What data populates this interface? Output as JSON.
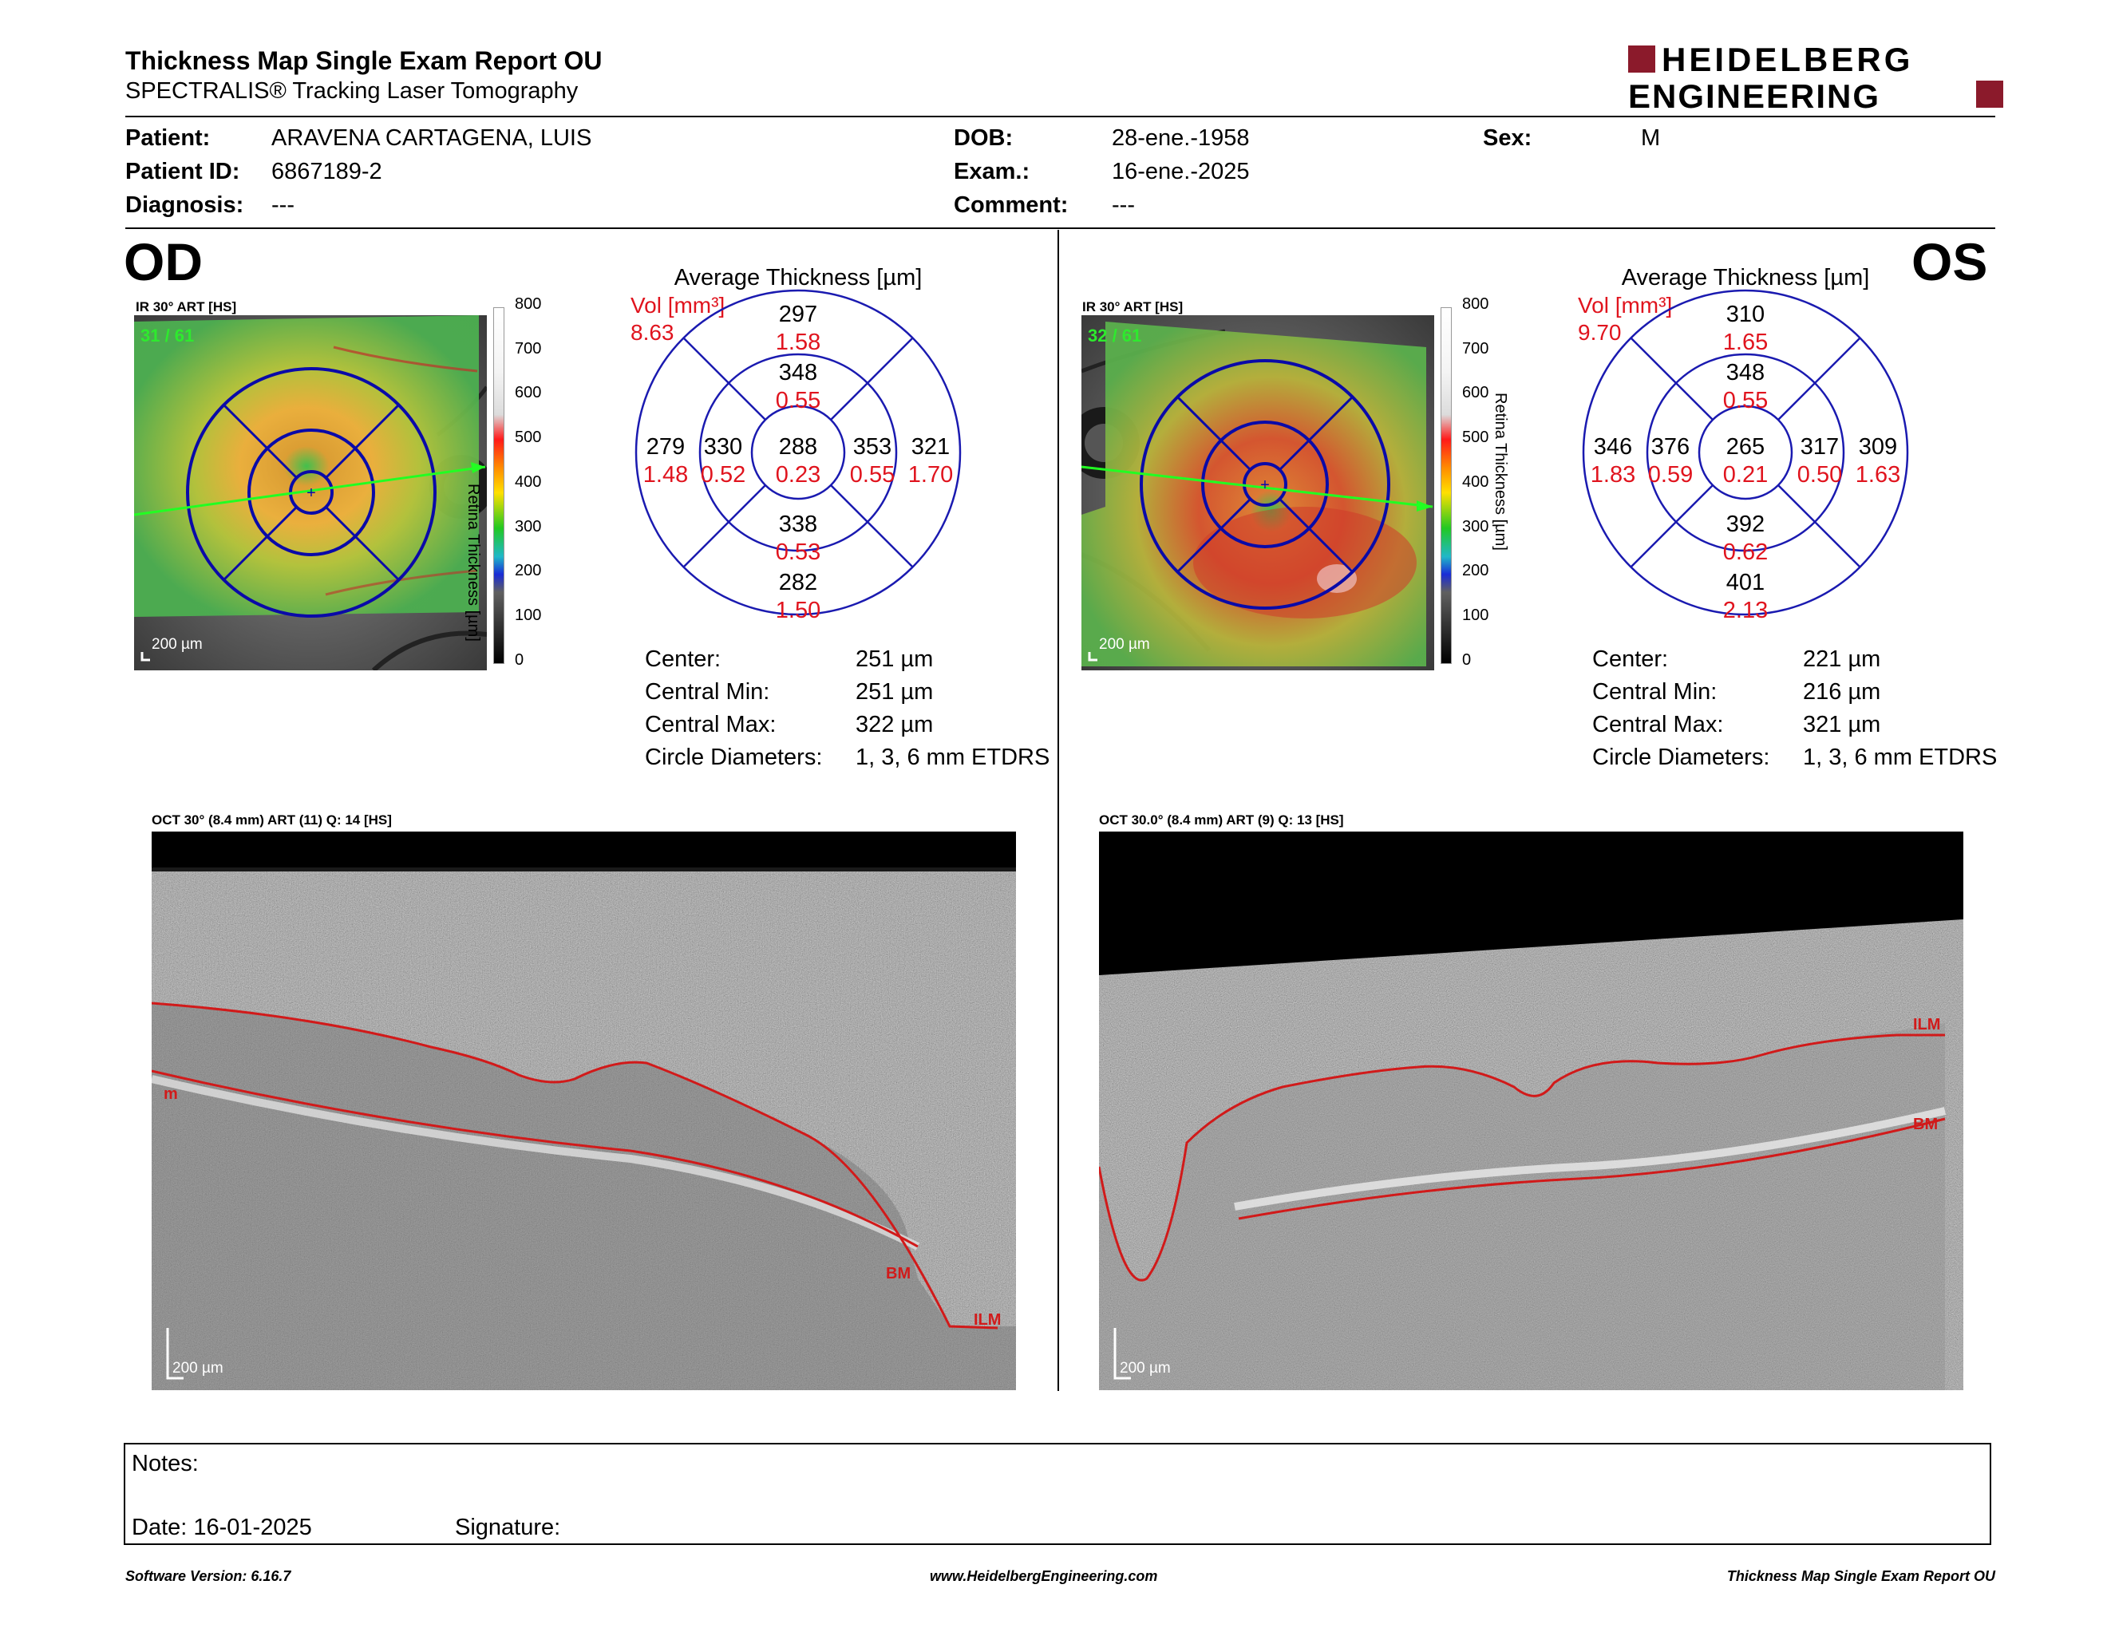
{
  "header": {
    "title": "Thickness Map Single Exam Report OU",
    "subtitle": "SPECTRALIS® Tracking Laser Tomography",
    "logo_line1": "HEIDELBERG",
    "logo_line2": "ENGINEERING",
    "brand_color": "#8b1a2b"
  },
  "patient": {
    "patient_label": "Patient:",
    "patient_value": "ARAVENA CARTAGENA, LUIS",
    "id_label": "Patient ID:",
    "id_value": "6867189-2",
    "diag_label": "Diagnosis:",
    "diag_value": "---",
    "dob_label": "DOB:",
    "dob_value": "28-ene.-1958",
    "exam_label": "Exam.:",
    "exam_value": "16-ene.-2025",
    "comment_label": "Comment:",
    "comment_value": "---",
    "sex_label": "Sex:",
    "sex_value": "M"
  },
  "od": {
    "eye_label": "OD",
    "ir_caption": "IR 30° ART [HS]",
    "frame": "31 / 61",
    "scale": "200 µm",
    "colorbar_ticks": [
      "800",
      "700",
      "600",
      "500",
      "400",
      "300",
      "200",
      "100",
      "0"
    ],
    "colorbar_label": "Retina Thickness [µm]",
    "avg_title": "Average Thickness [µm]",
    "vol_label": "Vol [mm³]",
    "vol_value": "8.63",
    "grid": {
      "outer_sup": "297",
      "outer_sup_vol": "1.58",
      "inner_sup": "348",
      "inner_sup_vol": "0.55",
      "outer_temp": "279",
      "outer_temp_vol": "1.48",
      "inner_temp": "330",
      "inner_temp_vol": "0.52",
      "center": "288",
      "center_vol": "0.23",
      "inner_nas": "353",
      "inner_nas_vol": "0.55",
      "outer_nas": "321",
      "outer_nas_vol": "1.70",
      "inner_inf": "338",
      "inner_inf_vol": "0.53",
      "outer_inf": "282",
      "outer_inf_vol": "1.50"
    },
    "stats": {
      "center_label": "Center:",
      "center_value": "251 µm",
      "min_label": "Central Min:",
      "min_value": "251 µm",
      "max_label": "Central Max:",
      "max_value": "322 µm",
      "circ_label": "Circle Diameters:",
      "circ_value": "1, 3, 6 mm ETDRS"
    },
    "oct_caption": "OCT 30° (8.4 mm) ART (11) Q: 14 [HS]",
    "oct_scale": "200 µm",
    "oct_labels": {
      "ilm": "ILM",
      "bm": "BM",
      "m": "m"
    }
  },
  "os": {
    "eye_label": "OS",
    "ir_caption": "IR 30° ART [HS]",
    "frame": "32 / 61",
    "scale": "200 µm",
    "colorbar_ticks": [
      "800",
      "700",
      "600",
      "500",
      "400",
      "300",
      "200",
      "100",
      "0"
    ],
    "colorbar_label": "Retina Thickness [µm]",
    "avg_title": "Average Thickness [µm]",
    "vol_label": "Vol [mm³]",
    "vol_value": "9.70",
    "grid": {
      "outer_sup": "310",
      "outer_sup_vol": "1.65",
      "inner_sup": "348",
      "inner_sup_vol": "0.55",
      "outer_temp": "346",
      "outer_temp_vol": "1.83",
      "inner_temp": "376",
      "inner_temp_vol": "0.59",
      "center": "265",
      "center_vol": "0.21",
      "inner_nas": "317",
      "inner_nas_vol": "0.50",
      "outer_nas": "309",
      "outer_nas_vol": "1.63",
      "inner_inf": "392",
      "inner_inf_vol": "0.62",
      "outer_inf": "401",
      "outer_inf_vol": "2.13"
    },
    "stats": {
      "center_label": "Center:",
      "center_value": "221 µm",
      "min_label": "Central Min:",
      "min_value": "216 µm",
      "max_label": "Central Max:",
      "max_value": "321 µm",
      "circ_label": "Circle Diameters:",
      "circ_value": "1, 3, 6 mm ETDRS"
    },
    "oct_caption": "OCT 30.0° (8.4 mm) ART (9) Q: 13 [HS]",
    "oct_scale": "200 µm",
    "oct_labels": {
      "ilm": "ILM",
      "bm": "BM"
    }
  },
  "notes": {
    "notes_label": "Notes:",
    "date_label": "Date: 16-01-2025",
    "signature_label": "Signature:"
  },
  "footer": {
    "software": "Software Version: 6.16.7",
    "url": "www.HeidelbergEngineering.com",
    "report": "Thickness Map Single Exam Report OU"
  }
}
